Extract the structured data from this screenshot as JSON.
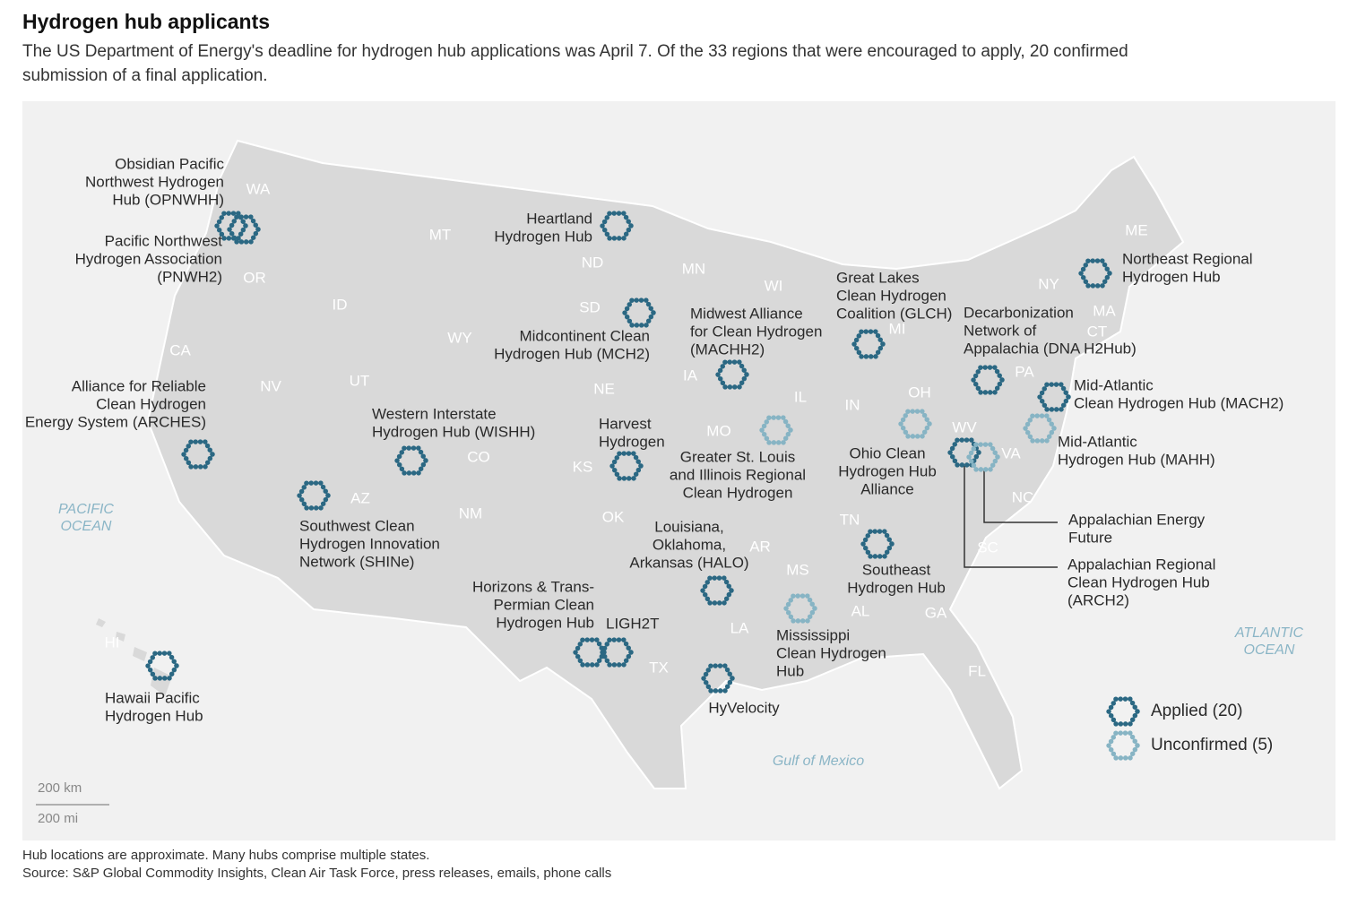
{
  "header": {
    "title": "Hydrogen hub applicants",
    "subtitle": [
      "The US Department of Energy's deadline for hydrogen hub applications was April 7. Of the 33 regions that were encouraged to apply, 20 confirmed",
      "submission of a final application."
    ]
  },
  "map": {
    "colors": {
      "applied": "#2b6883",
      "unconfirmed": "#87b4c4"
    },
    "states": [
      "WA",
      "OR",
      "CA",
      "NV",
      "ID",
      "MT",
      "WY",
      "UT",
      "AZ",
      "CO",
      "NM",
      "ND",
      "SD",
      "NE",
      "KS",
      "OK",
      "TX",
      "MN",
      "IA",
      "MO",
      "AR",
      "LA",
      "WI",
      "IL",
      "MS",
      "MI",
      "IN",
      "OH",
      "TN",
      "AL",
      "GA",
      "FL",
      "SC",
      "NC",
      "VA",
      "WV",
      "PA",
      "NY",
      "ME",
      "MA",
      "CT",
      "HI"
    ],
    "water": [
      [
        "PACIFIC",
        "OCEAN"
      ],
      [
        "ATLANTIC",
        "OCEAN"
      ],
      [
        "Gulf of Mexico"
      ]
    ],
    "hubs": [
      {
        "label": [
          "Obsidian Pacific",
          "Northwest Hydrogen",
          "Hub (OPNWHH)"
        ],
        "status": "applied"
      },
      {
        "label": [
          "Pacific Northwest",
          "Hydrogen Association",
          "(PNWH2)"
        ],
        "status": "applied"
      },
      {
        "label": [
          "Heartland",
          "Hydrogen Hub"
        ],
        "status": "applied"
      },
      {
        "label": [
          "Northeast Regional",
          "Hydrogen Hub"
        ],
        "status": "applied"
      },
      {
        "label": [
          "Midcontinent Clean",
          "Hydrogen Hub (MCH2)"
        ],
        "status": "applied"
      },
      {
        "label": [
          "Great Lakes",
          "Clean Hydrogen",
          "Coalition (GLCH)"
        ],
        "status": "applied"
      },
      {
        "label": [
          "Midwest Alliance",
          "for Clean Hydrogen",
          "(MACHH2)"
        ],
        "status": "applied"
      },
      {
        "label": [
          "Decarbonization",
          "Network of",
          "Appalachia (DNA H2Hub)"
        ],
        "status": "applied"
      },
      {
        "label": [
          "Mid-Atlantic",
          "Clean Hydrogen Hub (MACH2)"
        ],
        "status": "applied"
      },
      {
        "label": [
          "Mid-Atlantic",
          "Hydrogen Hub (MAHH)"
        ],
        "status": "unconfirmed"
      },
      {
        "label": [
          "Alliance for Reliable",
          "Clean Hydrogen",
          "Energy System (ARCHES)"
        ],
        "status": "applied"
      },
      {
        "label": [
          "Western Interstate",
          "Hydrogen Hub (WISHH)"
        ],
        "status": "applied"
      },
      {
        "label": [
          "Harvest",
          "Hydrogen"
        ],
        "status": "applied"
      },
      {
        "label": [
          "Greater St. Louis",
          "and Illinois Regional",
          "Clean Hydrogen"
        ],
        "status": "unconfirmed"
      },
      {
        "label": [
          "Ohio Clean",
          "Hydrogen Hub",
          "Alliance"
        ],
        "status": "unconfirmed"
      },
      {
        "label": [
          "Appalachian Regional",
          "Clean Hydrogen Hub",
          "(ARCH2)"
        ],
        "status": "applied"
      },
      {
        "label": [
          "Appalachian Energy",
          "Future"
        ],
        "status": "unconfirmed"
      },
      {
        "label": [
          "Southwest Clean",
          "Hydrogen Innovation",
          "Network (SHINe)"
        ],
        "status": "applied"
      },
      {
        "label": [
          "Louisiana,",
          "Oklahoma,",
          "Arkansas (HALO)"
        ],
        "status": "applied"
      },
      {
        "label": [
          "Horizons & Trans-",
          "Permian Clean",
          "Hydrogen Hub"
        ],
        "status": "applied"
      },
      {
        "label": [
          "LIGH2T"
        ],
        "status": "applied"
      },
      {
        "label": [
          "Southeast",
          "Hydrogen Hub"
        ],
        "status": "applied"
      },
      {
        "label": [
          "Mississippi",
          "Clean Hydrogen",
          "Hub"
        ],
        "status": "unconfirmed"
      },
      {
        "label": [
          "Hawaii Pacific",
          "Hydrogen Hub"
        ],
        "status": "applied"
      },
      {
        "label": [
          "HyVelocity"
        ],
        "status": "applied"
      }
    ],
    "legend": [
      {
        "label": "Applied (20)",
        "status": "applied"
      },
      {
        "label": "Unconfirmed (5)",
        "status": "unconfirmed"
      }
    ],
    "scale": [
      "200 km",
      "200 mi"
    ]
  },
  "footer": {
    "note": "Hub locations are approximate. Many hubs comprise multiple states.",
    "source": "Source: S&P Global Commodity Insights, Clean Air Task Force, press releases, emails, phone calls"
  }
}
